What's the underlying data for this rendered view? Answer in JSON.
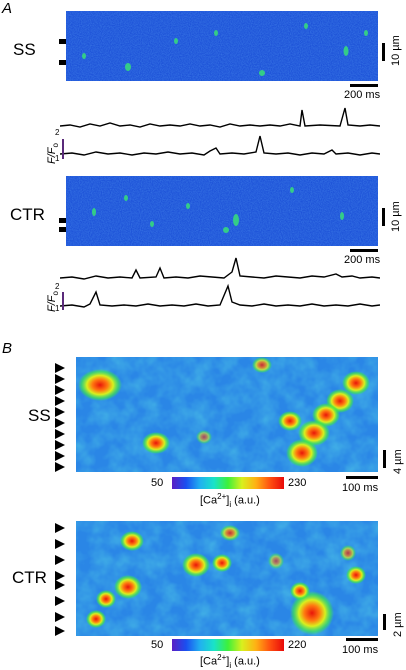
{
  "panels": {
    "A": {
      "letter": "A",
      "ss": {
        "label": "SS",
        "time_scale": "200 ms",
        "space_scale": "10 µm"
      },
      "traces_ss": {
        "axis": "F/F",
        "axis_sub": "o",
        "tick_top": "2",
        "tick_bottom": "1"
      },
      "ctr": {
        "label": "CTR",
        "time_scale": "200 ms",
        "space_scale": "10 µm"
      },
      "traces_ctr": {
        "axis": "F/F",
        "axis_sub": "o",
        "tick_top": "2",
        "tick_bottom": "1"
      }
    },
    "B": {
      "letter": "B",
      "ss": {
        "label": "SS",
        "time_scale": "100 ms",
        "space_scale": "4 µm",
        "cbar_min": "50",
        "cbar_max": "230",
        "cbar_label": "[Ca",
        "cbar_sup": "2+",
        "cbar_sub": "i",
        "cbar_unit": " (a.u.)"
      },
      "ctr": {
        "label": "CTR",
        "time_scale": "100 ms",
        "space_scale": "2 µm",
        "cbar_min": "50",
        "cbar_max": "220",
        "cbar_label": "[Ca",
        "cbar_sup": "2+",
        "cbar_sub": "i",
        "cbar_unit": " (a.u.)"
      }
    }
  },
  "colors": {
    "image_blue": "#1d52d8",
    "spark_green": "#37e07a",
    "hot": "#e8150a"
  }
}
